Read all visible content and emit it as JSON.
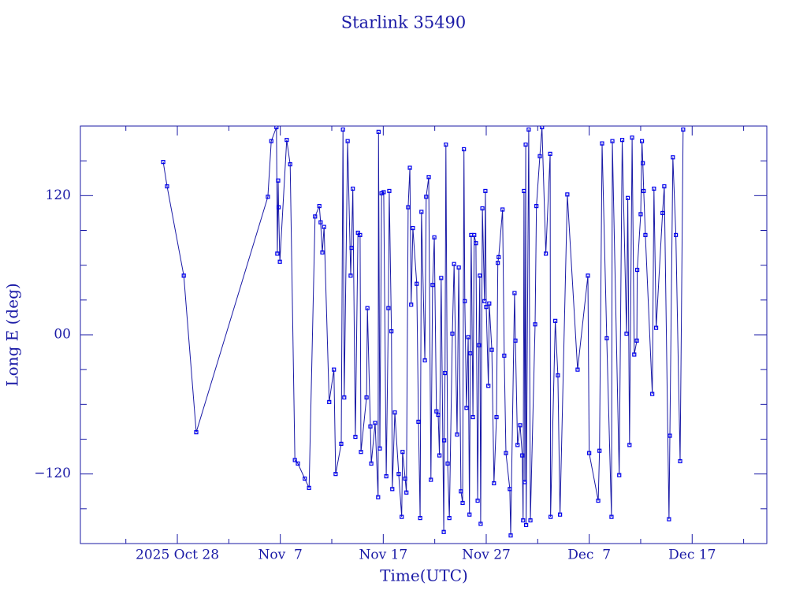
{
  "chart_data": {
    "type": "line",
    "title": "Starlink 35490",
    "xlabel": "Time(UTC)",
    "ylabel": "Long E (deg)",
    "xlim": [
      "2025-10-18T14:00",
      "2025-12-24T06:00"
    ],
    "ylim": [
      -180,
      180
    ],
    "xticks": [
      {
        "value": "2025-10-28T00:00",
        "label": "2025 Oct 28"
      },
      {
        "value": "2025-11-07T00:00",
        "label": "Nov  7"
      },
      {
        "value": "2025-11-17T00:00",
        "label": "Nov 17"
      },
      {
        "value": "2025-11-27T00:00",
        "label": "Nov 27"
      },
      {
        "value": "2025-12-07T00:00",
        "label": "Dec  7"
      },
      {
        "value": "2025-12-17T00:00",
        "label": "Dec 17"
      }
    ],
    "xminorticks": [
      "2025-10-23T00:00",
      "2025-11-02T00:00",
      "2025-11-12T00:00",
      "2025-11-22T00:00",
      "2025-12-02T00:00",
      "2025-12-12T00:00",
      "2025-12-22T00:00"
    ],
    "yticks": [
      {
        "value": -120,
        "label": "−120"
      },
      {
        "value": 0,
        "label": "00"
      },
      120
    ],
    "yminorticks": [
      -150,
      -90,
      -60,
      -30,
      30,
      60,
      90,
      150
    ],
    "series": [
      {
        "color": "#1a1aa6",
        "marker_color": "#0000ee",
        "x": [
          "2025-10-26T15:00",
          "2025-10-27T00:00",
          "2025-10-28T15:00",
          "2025-10-29T20:00",
          "2025-11-05T19:00",
          "2025-11-06T03:00",
          "2025-11-06T15:00",
          "2025-11-06T17:00",
          "2025-11-06T19:00",
          "2025-11-06T20:00",
          "2025-11-06T23:00",
          "2025-11-07T15:00",
          "2025-11-07T23:00",
          "2025-11-08T10:00",
          "2025-11-08T17:00",
          "2025-11-09T09:00",
          "2025-11-09T19:00",
          "2025-11-10T09:00",
          "2025-11-10T19:00",
          "2025-11-10T22:00",
          "2025-11-11T02:00",
          "2025-11-11T06:00",
          "2025-11-11T18:00",
          "2025-11-12T05:00",
          "2025-11-12T09:00",
          "2025-11-12T22:00",
          "2025-11-13T02:00",
          "2025-11-13T05:00",
          "2025-11-13T13:00",
          "2025-11-13T20:00",
          "2025-11-13T22:00",
          "2025-11-14T01:00",
          "2025-11-14T07:00",
          "2025-11-14T13:00",
          "2025-11-14T18:00",
          "2025-11-14T20:00",
          "2025-11-15T09:00",
          "2025-11-15T11:00",
          "2025-11-15T18:00",
          "2025-11-15T20:00",
          "2025-11-16T05:00",
          "2025-11-16T12:00",
          "2025-11-16T13:00",
          "2025-11-16T16:00",
          "2025-11-16T20:00",
          "2025-11-17T01:00",
          "2025-11-17T07:00",
          "2025-11-17T12:00",
          "2025-11-17T14:00",
          "2025-11-17T19:00",
          "2025-11-17T21:00",
          "2025-11-18T03:00",
          "2025-11-18T12:00",
          "2025-11-18T19:00",
          "2025-11-18T21:00",
          "2025-11-19T03:00",
          "2025-11-19T06:00",
          "2025-11-19T10:00",
          "2025-11-19T14:00",
          "2025-11-19T17:00",
          "2025-11-19T21:00",
          "2025-11-20T06:00",
          "2025-11-20T10:00",
          "2025-11-20T14:00",
          "2025-11-20T17:00",
          "2025-11-21T01:00",
          "2025-11-21T04:00",
          "2025-11-21T10:00",
          "2025-11-21T15:00",
          "2025-11-21T19:00",
          "2025-11-21T23:00",
          "2025-11-22T04:00",
          "2025-11-22T08:00",
          "2025-11-22T11:00",
          "2025-11-22T15:00",
          "2025-11-22T21:00",
          "2025-11-22T22:00",
          "2025-11-23T00:00",
          "2025-11-23T02:00",
          "2025-11-23T06:00",
          "2025-11-23T10:00",
          "2025-11-23T17:00",
          "2025-11-23T21:00",
          "2025-11-24T04:00",
          "2025-11-24T08:00",
          "2025-11-24T13:00",
          "2025-11-24T17:00",
          "2025-11-24T20:00",
          "2025-11-24T22:00",
          "2025-11-25T02:00",
          "2025-11-25T06:00",
          "2025-11-25T09:00",
          "2025-11-25T11:00",
          "2025-11-25T13:00",
          "2025-11-25T17:00",
          "2025-11-25T20:00",
          "2025-11-26T00:00",
          "2025-11-26T04:00",
          "2025-11-26T07:00",
          "2025-11-26T09:00",
          "2025-11-26T11:00",
          "2025-11-26T15:00",
          "2025-11-26T20:00",
          "2025-11-26T22:00",
          "2025-11-27T00:00",
          "2025-11-27T05:00",
          "2025-11-27T07:00",
          "2025-11-27T13:00",
          "2025-11-27T18:00",
          "2025-11-28T00:00",
          "2025-11-28T03:00",
          "2025-11-28T05:00",
          "2025-11-28T14:00",
          "2025-11-28T18:00",
          "2025-11-28T22:00",
          "2025-11-29T07:00",
          "2025-11-29T09:00",
          "2025-11-29T18:00",
          "2025-11-29T20:00",
          "2025-11-30T01:00",
          "2025-11-30T07:00",
          "2025-11-30T12:00",
          "2025-11-30T14:00",
          "2025-11-30T16:00",
          "2025-11-30T18:00",
          "2025-11-30T20:00",
          "2025-11-30T21:00",
          "2025-12-01T03:00",
          "2025-12-01T07:00",
          "2025-12-01T18:00",
          "2025-12-01T21:00",
          "2025-12-02T05:00",
          "2025-12-02T10:00",
          "2025-12-02T19:00",
          "2025-12-03T05:00",
          "2025-12-03T06:00",
          "2025-12-03T17:00",
          "2025-12-03T23:00",
          "2025-12-04T04:00",
          "2025-12-04T21:00",
          "2025-12-05T21:00",
          "2025-12-06T21:00",
          "2025-12-07T00:00",
          "2025-12-07T21:00",
          "2025-12-08T00:00",
          "2025-12-08T06:00",
          "2025-12-08T17:00",
          "2025-12-09T04:00",
          "2025-12-09T06:00",
          "2025-12-09T22:00",
          "2025-12-10T05:00",
          "2025-12-10T15:00",
          "2025-12-10T18:00",
          "2025-12-10T22:00",
          "2025-12-11T04:00",
          "2025-12-11T09:00",
          "2025-12-11T15:00",
          "2025-12-11T16:00",
          "2025-12-12T00:00",
          "2025-12-12T03:00",
          "2025-12-12T05:00",
          "2025-12-12T07:00",
          "2025-12-12T11:00",
          "2025-12-13T03:00",
          "2025-12-13T07:00",
          "2025-12-13T12:00",
          "2025-12-14T03:00",
          "2025-12-14T07:00",
          "2025-12-14T18:00",
          "2025-12-14T20:00",
          "2025-12-15T03:00",
          "2025-12-15T10:00",
          "2025-12-15T20:00",
          "2025-12-16T03:00"
        ],
        "values": [
          149,
          128,
          51,
          -84,
          119,
          167,
          179,
          70,
          133,
          110,
          63,
          168,
          147,
          -108,
          -111,
          -124,
          -132,
          102,
          111,
          97,
          71,
          93,
          -58,
          -30,
          -120,
          -94,
          177,
          -54,
          167,
          51,
          75,
          126,
          -88,
          88,
          86,
          -101,
          -54,
          23,
          -79,
          -111,
          -76,
          -140,
          175,
          -98,
          122,
          123,
          -122,
          23,
          124,
          3,
          -133,
          -67,
          -120,
          -157,
          -101,
          -124,
          -136,
          110,
          144,
          26,
          92,
          44,
          -75,
          -158,
          106,
          -22,
          119,
          136,
          -125,
          43,
          84,
          -66,
          -69,
          -104,
          49,
          -170,
          -91,
          -33,
          164,
          -111,
          -158,
          1,
          61,
          -86,
          58,
          -135,
          -145,
          160,
          29,
          -63,
          -2,
          -155,
          -16,
          86,
          -71,
          86,
          79,
          -143,
          -9,
          51,
          -163,
          109,
          29,
          124,
          24,
          -44,
          27,
          -13,
          -128,
          -71,
          62,
          67,
          108,
          -18,
          -102,
          -133,
          -173,
          36,
          -5,
          -95,
          -78,
          -104,
          -160,
          124,
          -127,
          164,
          -164,
          177,
          -160,
          9,
          111,
          154,
          179,
          70,
          156,
          -157,
          12,
          -35,
          -155,
          121,
          -30,
          51,
          -102,
          -143,
          -100,
          165,
          -3,
          -157,
          167,
          -121,
          168,
          1,
          118,
          -95,
          170,
          -17,
          -5,
          56,
          104,
          167,
          148,
          124,
          86,
          -51,
          126,
          6,
          105,
          128,
          -159,
          -87,
          153,
          86,
          -109,
          177
        ]
      }
    ]
  }
}
